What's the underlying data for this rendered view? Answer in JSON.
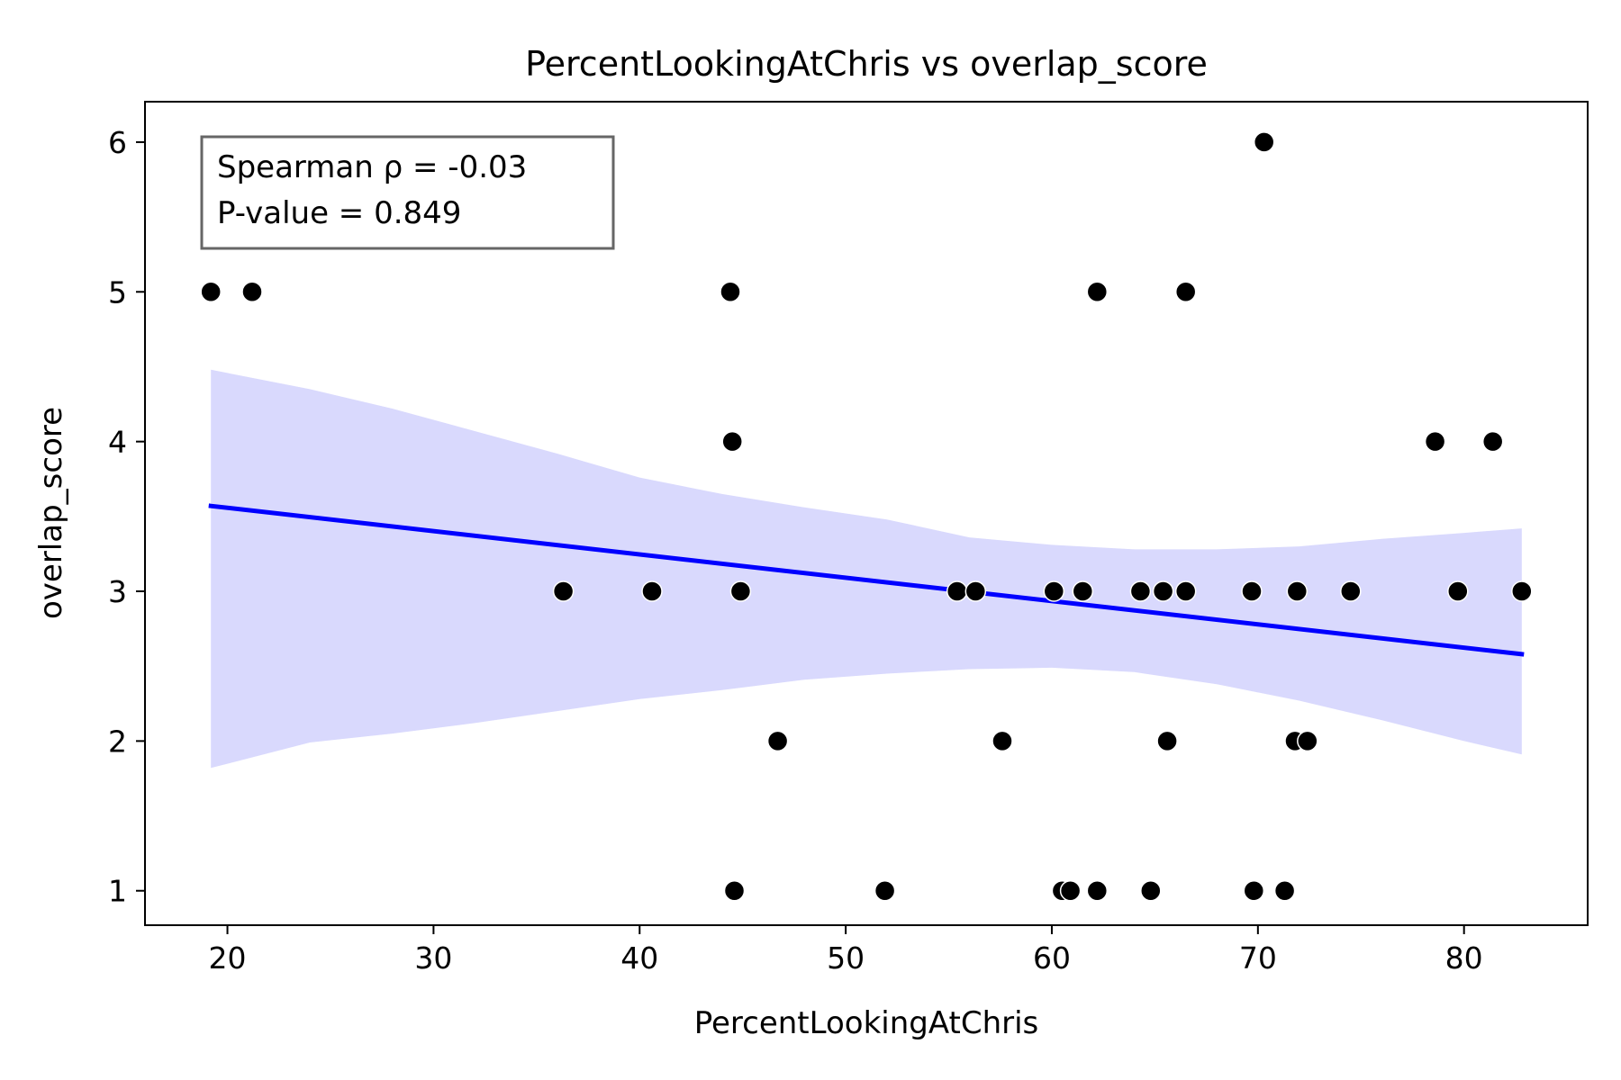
{
  "chart_data": {
    "type": "scatter",
    "title": "PercentLookingAtChris vs overlap_score",
    "xlabel": "PercentLookingAtChris",
    "ylabel": "overlap_score",
    "xlim": [
      16,
      86
    ],
    "ylim": [
      0.77,
      6.27
    ],
    "xticks": [
      20,
      30,
      40,
      50,
      60,
      70,
      80
    ],
    "yticks": [
      1,
      2,
      3,
      4,
      5,
      6
    ],
    "grid": false,
    "annotation": {
      "lines": [
        "Spearman ρ = -0.03",
        "P-value = 0.849"
      ],
      "placement": "top-left"
    },
    "colors": {
      "points": "#000000",
      "regression_line": "#0000ff",
      "confidence_band": "#d9d9fd",
      "annotation_border": "#666666"
    },
    "points": [
      {
        "x": 19.2,
        "y": 5
      },
      {
        "x": 21.2,
        "y": 5
      },
      {
        "x": 44.4,
        "y": 5
      },
      {
        "x": 62.2,
        "y": 5
      },
      {
        "x": 66.5,
        "y": 5
      },
      {
        "x": 70.3,
        "y": 6
      },
      {
        "x": 44.5,
        "y": 4
      },
      {
        "x": 78.6,
        "y": 4
      },
      {
        "x": 81.4,
        "y": 4
      },
      {
        "x": 36.3,
        "y": 3
      },
      {
        "x": 40.6,
        "y": 3
      },
      {
        "x": 44.9,
        "y": 3
      },
      {
        "x": 55.4,
        "y": 3
      },
      {
        "x": 56.3,
        "y": 3
      },
      {
        "x": 60.1,
        "y": 3
      },
      {
        "x": 61.5,
        "y": 3
      },
      {
        "x": 64.3,
        "y": 3
      },
      {
        "x": 65.4,
        "y": 3
      },
      {
        "x": 66.5,
        "y": 3
      },
      {
        "x": 69.7,
        "y": 3
      },
      {
        "x": 71.9,
        "y": 3
      },
      {
        "x": 74.5,
        "y": 3
      },
      {
        "x": 79.7,
        "y": 3
      },
      {
        "x": 82.8,
        "y": 3
      },
      {
        "x": 46.7,
        "y": 2
      },
      {
        "x": 57.6,
        "y": 2
      },
      {
        "x": 65.6,
        "y": 2
      },
      {
        "x": 71.8,
        "y": 2
      },
      {
        "x": 72.4,
        "y": 2
      },
      {
        "x": 44.6,
        "y": 1
      },
      {
        "x": 51.9,
        "y": 1
      },
      {
        "x": 60.5,
        "y": 1
      },
      {
        "x": 60.9,
        "y": 1
      },
      {
        "x": 62.2,
        "y": 1
      },
      {
        "x": 64.8,
        "y": 1
      },
      {
        "x": 69.8,
        "y": 1
      },
      {
        "x": 71.3,
        "y": 1
      }
    ],
    "regression": {
      "x": [
        19.2,
        82.8
      ],
      "y": [
        3.57,
        2.58
      ]
    },
    "confidence_band": {
      "x": [
        19.2,
        24,
        28,
        32,
        36,
        40,
        44,
        48,
        52,
        56,
        60,
        64,
        68,
        72,
        76,
        80,
        82.8
      ],
      "upper": [
        4.48,
        4.35,
        4.22,
        4.07,
        3.92,
        3.76,
        3.65,
        3.56,
        3.48,
        3.36,
        3.31,
        3.28,
        3.28,
        3.3,
        3.35,
        3.39,
        3.42
      ],
      "lower": [
        1.82,
        1.99,
        2.05,
        2.12,
        2.2,
        2.28,
        2.34,
        2.41,
        2.45,
        2.48,
        2.49,
        2.46,
        2.38,
        2.27,
        2.14,
        2.0,
        1.91
      ]
    }
  }
}
